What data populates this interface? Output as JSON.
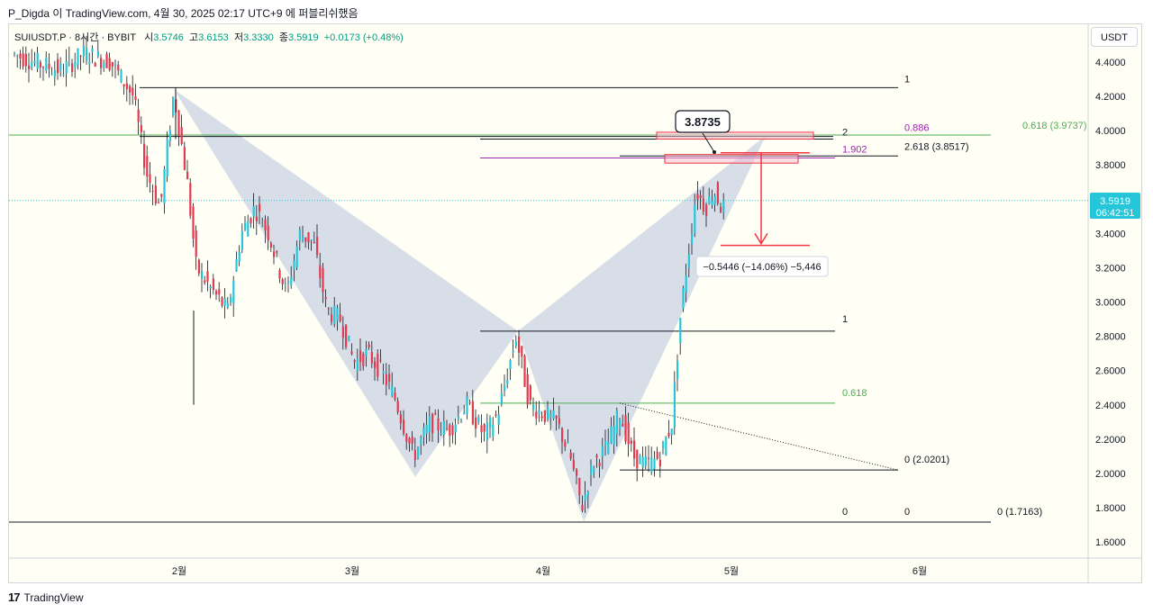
{
  "caption": "P_Digda 이 TradingView.com, 4월 30, 2025 02:17 UTC+9 에 퍼블리쉬했음",
  "legend": {
    "symbol": "SUIUSDT.P · 8시간 · BYBIT",
    "o_label": "시",
    "o": "3.5746",
    "h_label": "고",
    "h": "3.6153",
    "l_label": "저",
    "l": "3.3330",
    "c_label": "종",
    "c": "3.5919",
    "change": "+0.0173 (+0.48%)"
  },
  "currency": "USDT",
  "price_badge": {
    "price": "3.5919",
    "timer": "06:42:51"
  },
  "callout": "3.8735",
  "measure_label": "−0.5446 (−14.06%) −5,446",
  "brand": "TradingView",
  "colors": {
    "up": "#26c6da",
    "down": "#e53950",
    "wick": "#131722",
    "pattern": "#b7c3dc",
    "green": "#4caf50",
    "purple": "#9c27b0",
    "red": "#f23645"
  },
  "chart_data": {
    "type": "candlestick",
    "yaxis_ticks": [
      "4.4000",
      "4.2000",
      "4.0000",
      "3.8000",
      "3.6000",
      "3.4000",
      "3.2000",
      "3.0000",
      "2.8000",
      "2.6000",
      "2.4000",
      "2.2000",
      "2.0000",
      "1.8000",
      "1.6000"
    ],
    "ylim": [
      1.55,
      4.5
    ],
    "xaxis_ticks": [
      "2월",
      "3월",
      "4월",
      "5월",
      "6월"
    ],
    "harmonic_points": [
      {
        "x": "2025-01-31",
        "y": 4.24
      },
      {
        "x": "2025-03-11",
        "y": 1.98
      },
      {
        "x": "2025-03-27",
        "y": 2.83
      },
      {
        "x": "2025-04-07",
        "y": 1.72
      },
      {
        "x": "2025-05-08",
        "y": 3.97
      }
    ],
    "fib_levels": [
      {
        "label": "1",
        "value": 4.25
      },
      {
        "label": "0.618 (3.9737)",
        "value": 3.9737
      },
      {
        "label": "2",
        "value": 3.95
      },
      {
        "label": "0.886",
        "value": 3.98
      },
      {
        "label": "1.902",
        "value": 3.84
      },
      {
        "label": "2.618 (3.8517)",
        "value": 3.8517
      },
      {
        "label": "1",
        "value": 2.83
      },
      {
        "label": "0.618",
        "value": 2.41
      },
      {
        "label": "0 (2.0201)",
        "value": 2.0201
      },
      {
        "label": "0",
        "value": 1.7163
      },
      {
        "label": "0",
        "value": 1.7163
      },
      {
        "label": "0 (1.7163)",
        "value": 1.7163
      }
    ],
    "current_price": 3.5919,
    "target_price": 3.33,
    "callout_price": 3.8735
  }
}
